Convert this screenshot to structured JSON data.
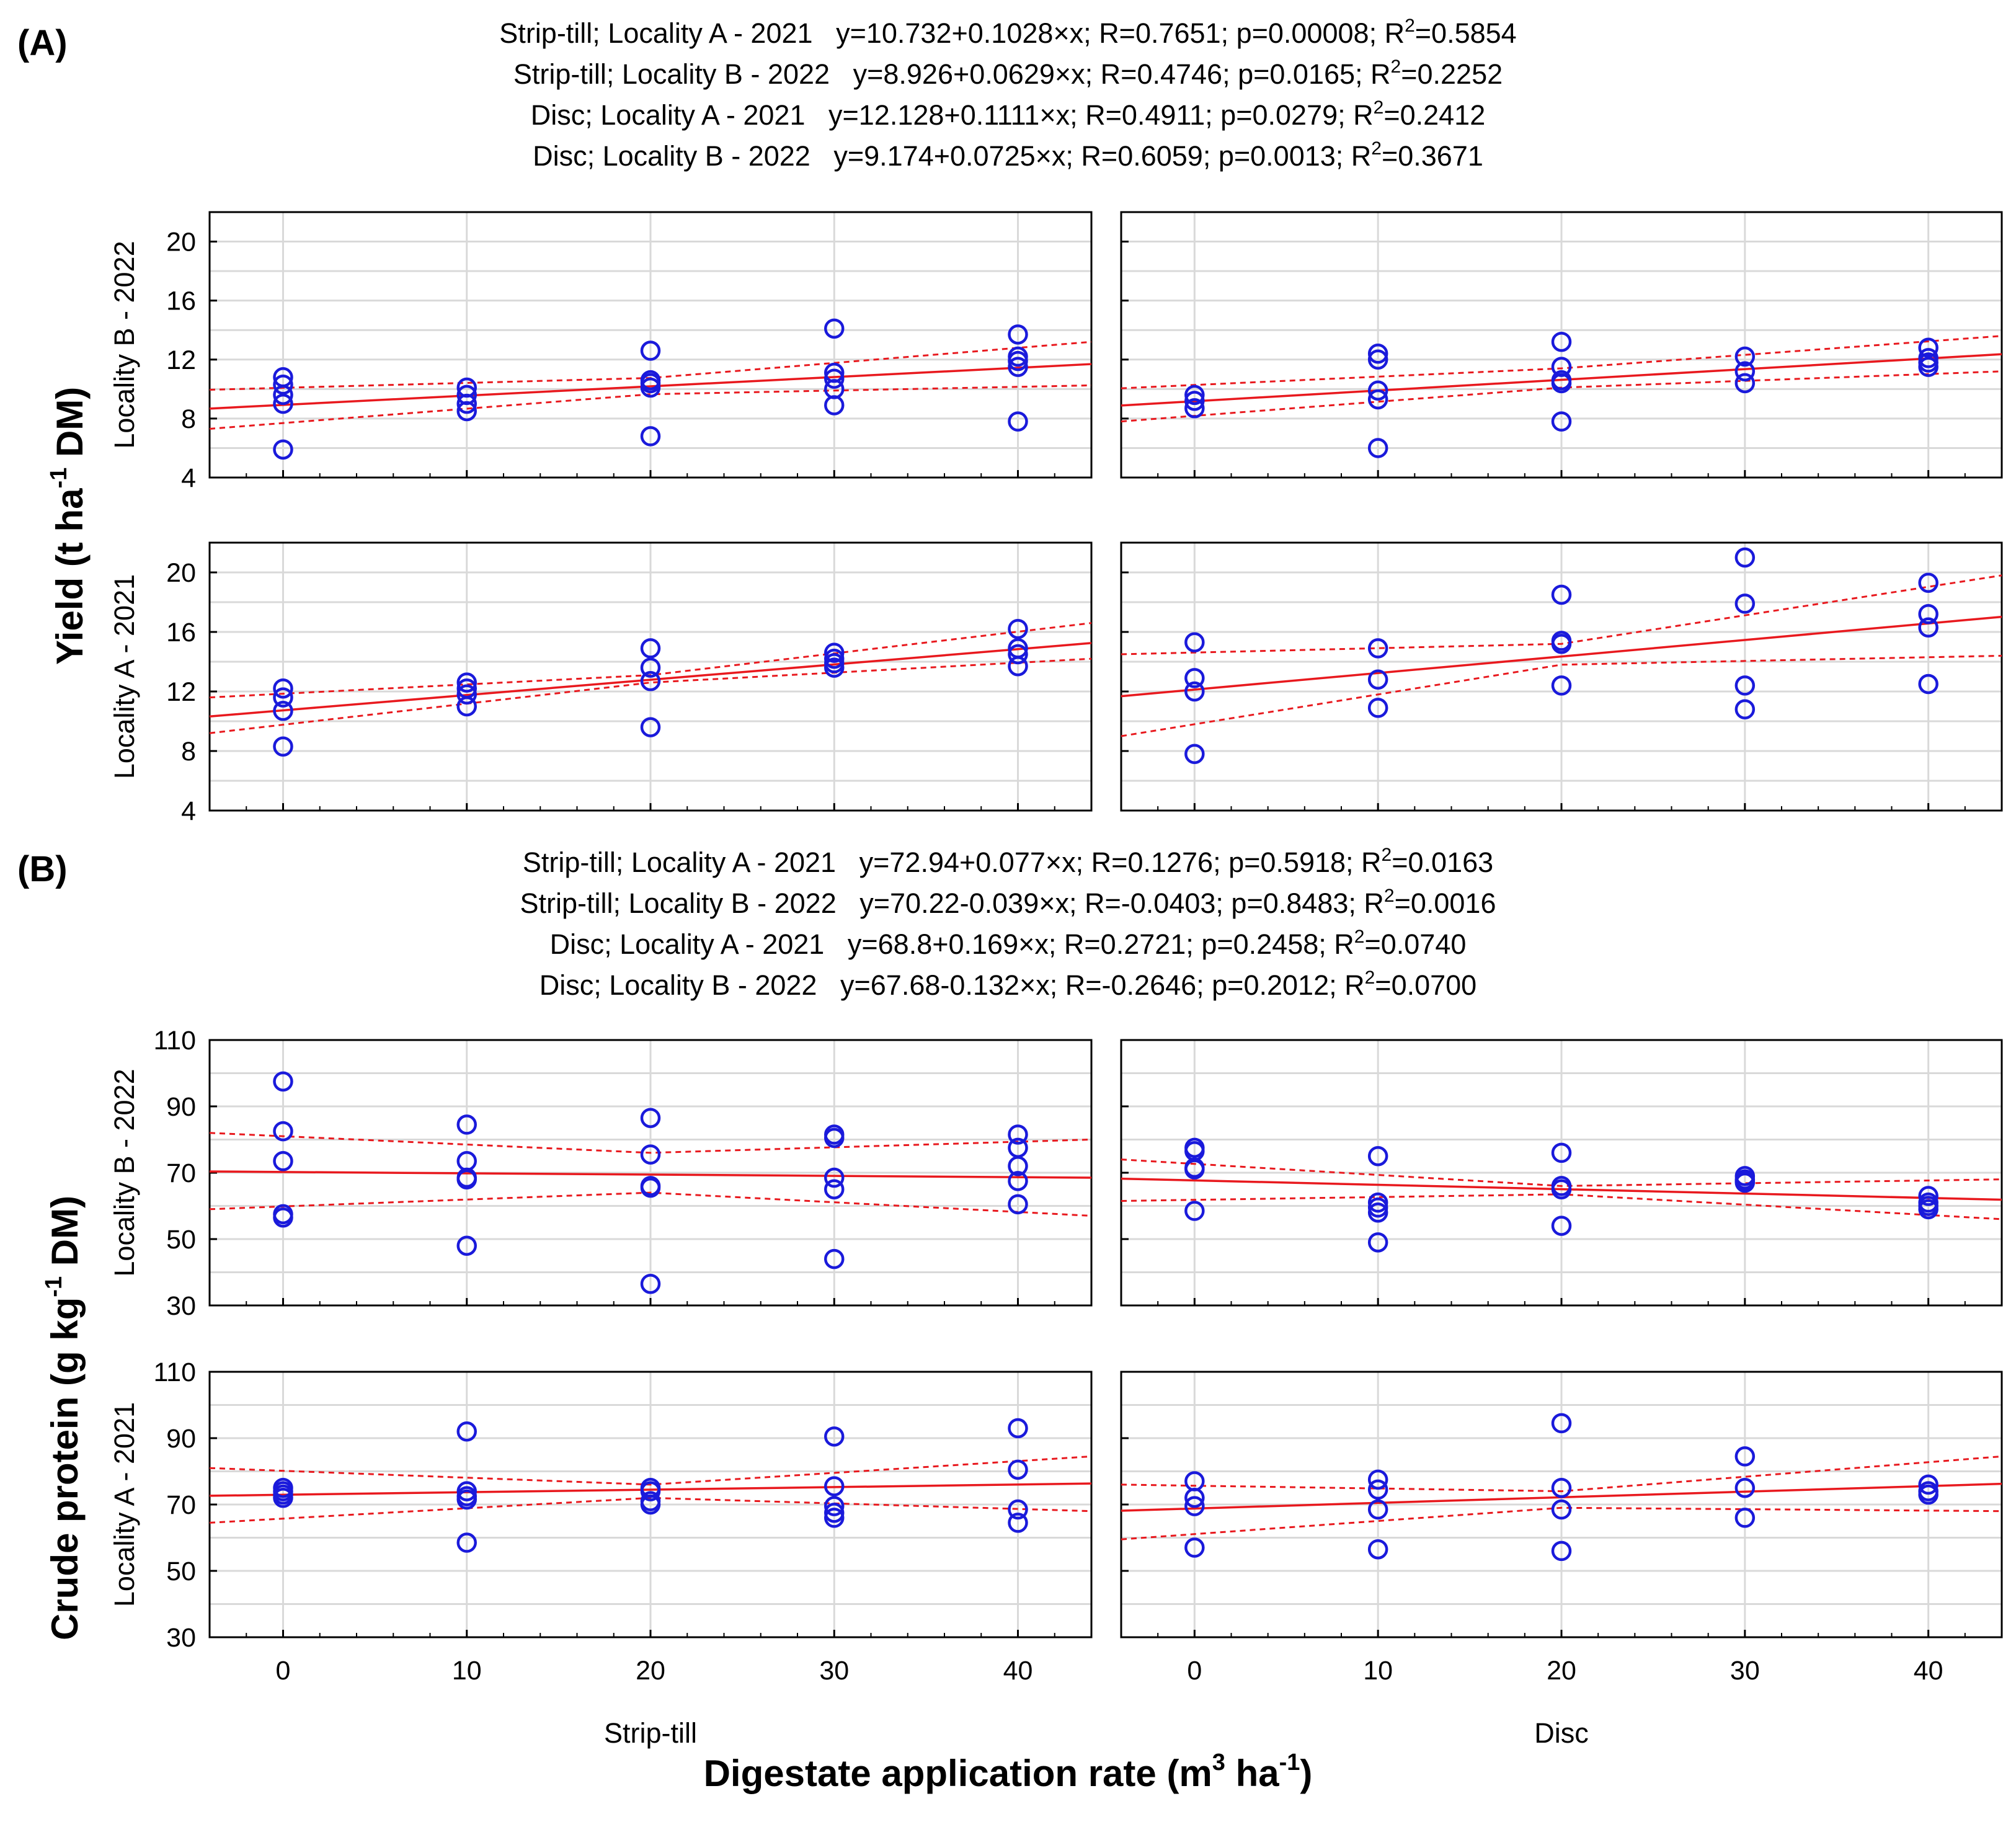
{
  "figure": {
    "y_title_yield": "Yield (t ha",
    "y_title_yield_sup": "-1",
    "y_title_yield_tail": " DM)",
    "y_title_protein": "Crude protein (g kg",
    "y_title_protein_sup": "-1",
    "y_title_protein_tail": " DM)",
    "x_title": "Digestate application rate (m",
    "x_title_sup": "3",
    "x_title_mid": " ha",
    "x_title_sup2": "-1",
    "x_title_tail": ")",
    "column_labels": [
      "Strip-till",
      "Disc"
    ],
    "row_labels": [
      "Locality B - 2022",
      "Locality A - 2021"
    ]
  },
  "colors": {
    "points": "#1a1adb",
    "fit": "#e8191e",
    "grid": "#d9d9d9",
    "frame": "#000000"
  },
  "chart_data": [
    {
      "type": "scatter",
      "section": "(A)",
      "variable": "Yield",
      "ylim": [
        4,
        22
      ],
      "yticks": [
        4,
        8,
        12,
        16,
        20
      ],
      "xlim": [
        -4,
        44
      ],
      "xticks": [
        0,
        10,
        20,
        30,
        40
      ],
      "equations": [
        {
          "label": "Strip-till; Locality A - 2021",
          "eq": "y=10.732+0.1028×x; R=0.7651; p=0.00008; R",
          "r2": "=0.5854"
        },
        {
          "label": "Strip-till; Locality B - 2022",
          "eq": "y=8.926+0.0629×x; R=0.4746; p=0.0165; R",
          "r2": "=0.2252"
        },
        {
          "label": "Disc; Locality A - 2021",
          "eq": "y=12.128+0.1111×x; R=0.4911; p=0.0279; R",
          "r2": "=0.2412"
        },
        {
          "label": "Disc; Locality B - 2022",
          "eq": "y=9.174+0.0725×x; R=0.6059; p=0.0013; R",
          "r2": "=0.3671"
        }
      ],
      "panels": [
        {
          "column": "Strip-till",
          "row": "Locality B - 2022",
          "intercept": 8.926,
          "slope": 0.0629,
          "ci_upper": [
            [
              -4,
              9.95
            ],
            [
              20,
              10.75
            ],
            [
              44,
              13.2
            ]
          ],
          "ci_lower": [
            [
              -4,
              7.3
            ],
            [
              20,
              9.65
            ],
            [
              44,
              10.25
            ]
          ],
          "points": [
            [
              0,
              10.8
            ],
            [
              0,
              10.3
            ],
            [
              0,
              9.6
            ],
            [
              0,
              9.0
            ],
            [
              0,
              5.9
            ],
            [
              10,
              10.1
            ],
            [
              10,
              9.6
            ],
            [
              10,
              9.0
            ],
            [
              10,
              8.5
            ],
            [
              20,
              12.6
            ],
            [
              20,
              10.6
            ],
            [
              20,
              10.4
            ],
            [
              20,
              10.1
            ],
            [
              20,
              6.8
            ],
            [
              30,
              14.1
            ],
            [
              30,
              11.1
            ],
            [
              30,
              10.7
            ],
            [
              30,
              10.0
            ],
            [
              30,
              8.9
            ],
            [
              40,
              13.7
            ],
            [
              40,
              12.2
            ],
            [
              40,
              11.9
            ],
            [
              40,
              11.5
            ],
            [
              40,
              7.8
            ]
          ]
        },
        {
          "column": "Disc",
          "row": "Locality B - 2022",
          "intercept": 9.174,
          "slope": 0.0725,
          "ci_upper": [
            [
              -4,
              10.05
            ],
            [
              20,
              11.4
            ],
            [
              44,
              13.6
            ]
          ],
          "ci_lower": [
            [
              -4,
              7.8
            ],
            [
              20,
              10.1
            ],
            [
              44,
              11.2
            ]
          ],
          "points": [
            [
              0,
              9.6
            ],
            [
              0,
              9.2
            ],
            [
              0,
              8.7
            ],
            [
              10,
              12.4
            ],
            [
              10,
              12.0
            ],
            [
              10,
              9.9
            ],
            [
              10,
              9.3
            ],
            [
              10,
              6.0
            ],
            [
              20,
              13.2
            ],
            [
              20,
              11.5
            ],
            [
              20,
              10.6
            ],
            [
              20,
              10.4
            ],
            [
              20,
              7.8
            ],
            [
              30,
              12.2
            ],
            [
              30,
              11.2
            ],
            [
              30,
              10.4
            ],
            [
              40,
              12.8
            ],
            [
              40,
              12.1
            ],
            [
              40,
              11.8
            ],
            [
              40,
              11.5
            ]
          ]
        },
        {
          "column": "Strip-till",
          "row": "Locality A - 2021",
          "intercept": 10.732,
          "slope": 0.1028,
          "ci_upper": [
            [
              -4,
              11.6
            ],
            [
              20,
              13.1
            ],
            [
              44,
              16.6
            ]
          ],
          "ci_lower": [
            [
              -4,
              9.2
            ],
            [
              20,
              12.6
            ],
            [
              44,
              14.2
            ]
          ],
          "points": [
            [
              0,
              12.2
            ],
            [
              0,
              11.6
            ],
            [
              0,
              10.7
            ],
            [
              0,
              8.3
            ],
            [
              10,
              12.6
            ],
            [
              10,
              12.2
            ],
            [
              10,
              11.8
            ],
            [
              10,
              11.0
            ],
            [
              20,
              14.9
            ],
            [
              20,
              13.6
            ],
            [
              20,
              12.7
            ],
            [
              20,
              9.6
            ],
            [
              30,
              14.6
            ],
            [
              30,
              14.2
            ],
            [
              30,
              13.9
            ],
            [
              30,
              13.6
            ],
            [
              40,
              16.2
            ],
            [
              40,
              14.9
            ],
            [
              40,
              14.5
            ],
            [
              40,
              13.7
            ]
          ]
        },
        {
          "column": "Disc",
          "row": "Locality A - 2021",
          "intercept": 12.128,
          "slope": 0.1111,
          "ci_upper": [
            [
              -4,
              14.5
            ],
            [
              20,
              15.2
            ],
            [
              44,
              19.8
            ]
          ],
          "ci_lower": [
            [
              -4,
              9.0
            ],
            [
              20,
              13.8
            ],
            [
              44,
              14.4
            ]
          ],
          "points": [
            [
              0,
              15.3
            ],
            [
              0,
              12.9
            ],
            [
              0,
              12.0
            ],
            [
              0,
              7.8
            ],
            [
              10,
              14.9
            ],
            [
              10,
              12.8
            ],
            [
              10,
              10.9
            ],
            [
              20,
              18.5
            ],
            [
              20,
              15.4
            ],
            [
              20,
              15.2
            ],
            [
              20,
              12.4
            ],
            [
              30,
              21.0
            ],
            [
              30,
              17.9
            ],
            [
              30,
              12.4
            ],
            [
              30,
              10.8
            ],
            [
              40,
              19.3
            ],
            [
              40,
              17.2
            ],
            [
              40,
              16.3
            ],
            [
              40,
              12.5
            ]
          ]
        }
      ]
    },
    {
      "type": "scatter",
      "section": "(B)",
      "variable": "Crude protein",
      "ylim": [
        30,
        110
      ],
      "yticks": [
        30,
        50,
        70,
        90,
        110
      ],
      "xlim": [
        -4,
        44
      ],
      "xticks": [
        0,
        10,
        20,
        30,
        40
      ],
      "equations": [
        {
          "label": "Strip-till; Locality A - 2021",
          "eq": "y=72.94+0.077×x; R=0.1276; p=0.5918; R",
          "r2": "=0.0163"
        },
        {
          "label": "Strip-till; Locality B - 2022",
          "eq": "y=70.22-0.039×x; R=-0.0403; p=0.8483; R",
          "r2": "=0.0016"
        },
        {
          "label": "Disc; Locality A - 2021",
          "eq": "y=68.8+0.169×x; R=0.2721; p=0.2458; R",
          "r2": "=0.0740"
        },
        {
          "label": "Disc; Locality B - 2022",
          "eq": "y=67.68-0.132×x; R=-0.2646; p=0.2012; R",
          "r2": "=0.0700"
        }
      ],
      "panels": [
        {
          "column": "Strip-till",
          "row": "Locality B - 2022",
          "intercept": 70.22,
          "slope": -0.039,
          "ci_upper": [
            [
              -4,
              82
            ],
            [
              20,
              76
            ],
            [
              44,
              80
            ]
          ],
          "ci_lower": [
            [
              -4,
              59
            ],
            [
              20,
              64
            ],
            [
              44,
              57
            ]
          ],
          "points": [
            [
              0,
              97.5
            ],
            [
              0,
              82.5
            ],
            [
              0,
              73.5
            ],
            [
              0,
              57.5
            ],
            [
              0,
              56.5
            ],
            [
              10,
              84.5
            ],
            [
              10,
              73.5
            ],
            [
              10,
              68.5
            ],
            [
              10,
              68
            ],
            [
              10,
              48
            ],
            [
              20,
              86.5
            ],
            [
              20,
              75.5
            ],
            [
              20,
              66
            ],
            [
              20,
              65.5
            ],
            [
              20,
              36.5
            ],
            [
              30,
              81.5
            ],
            [
              30,
              80.5
            ],
            [
              30,
              68.5
            ],
            [
              30,
              65
            ],
            [
              30,
              44
            ],
            [
              40,
              81.5
            ],
            [
              40,
              77.5
            ],
            [
              40,
              72
            ],
            [
              40,
              67.5
            ],
            [
              40,
              60.5
            ]
          ]
        },
        {
          "column": "Disc",
          "row": "Locality B - 2022",
          "intercept": 67.68,
          "slope": -0.132,
          "ci_upper": [
            [
              -4,
              74
            ],
            [
              20,
              66
            ],
            [
              44,
              68
            ]
          ],
          "ci_lower": [
            [
              -4,
              61.5
            ],
            [
              20,
              63.5
            ],
            [
              44,
              56
            ]
          ],
          "points": [
            [
              0,
              77.5
            ],
            [
              0,
              76.5
            ],
            [
              0,
              71.5
            ],
            [
              0,
              71
            ],
            [
              0,
              58.5
            ],
            [
              10,
              75
            ],
            [
              10,
              61
            ],
            [
              10,
              59.5
            ],
            [
              10,
              58
            ],
            [
              10,
              49
            ],
            [
              20,
              76
            ],
            [
              20,
              66
            ],
            [
              20,
              65
            ],
            [
              20,
              54
            ],
            [
              30,
              69
            ],
            [
              30,
              68
            ],
            [
              30,
              67.5
            ],
            [
              30,
              67
            ],
            [
              40,
              63
            ],
            [
              40,
              61
            ],
            [
              40,
              60
            ],
            [
              40,
              59
            ]
          ]
        },
        {
          "column": "Strip-till",
          "row": "Locality A - 2021",
          "intercept": 72.94,
          "slope": 0.077,
          "ci_upper": [
            [
              -4,
              81
            ],
            [
              20,
              76
            ],
            [
              44,
              84.5
            ]
          ],
          "ci_lower": [
            [
              -4,
              64.5
            ],
            [
              20,
              72
            ],
            [
              44,
              68
            ]
          ],
          "points": [
            [
              0,
              75
            ],
            [
              0,
              74
            ],
            [
              0,
              73
            ],
            [
              0,
              72
            ],
            [
              10,
              92
            ],
            [
              10,
              74
            ],
            [
              10,
              72.5
            ],
            [
              10,
              71.5
            ],
            [
              10,
              58.5
            ],
            [
              20,
              75
            ],
            [
              20,
              74
            ],
            [
              20,
              71
            ],
            [
              20,
              70
            ],
            [
              30,
              90.5
            ],
            [
              30,
              75.5
            ],
            [
              30,
              69.5
            ],
            [
              30,
              67.5
            ],
            [
              30,
              66
            ],
            [
              40,
              93
            ],
            [
              40,
              80.5
            ],
            [
              40,
              68.5
            ],
            [
              40,
              64.5
            ]
          ]
        },
        {
          "column": "Disc",
          "row": "Locality A - 2021",
          "intercept": 68.8,
          "slope": 0.169,
          "ci_upper": [
            [
              -4,
              76
            ],
            [
              20,
              74
            ],
            [
              44,
              84.5
            ]
          ],
          "ci_lower": [
            [
              -4,
              59.5
            ],
            [
              20,
              69
            ],
            [
              44,
              68
            ]
          ],
          "points": [
            [
              0,
              77
            ],
            [
              0,
              72
            ],
            [
              0,
              69.5
            ],
            [
              0,
              57
            ],
            [
              10,
              77.5
            ],
            [
              10,
              74.5
            ],
            [
              10,
              68.5
            ],
            [
              10,
              56.5
            ],
            [
              20,
              94.5
            ],
            [
              20,
              75
            ],
            [
              20,
              68.5
            ],
            [
              20,
              56
            ],
            [
              30,
              84.5
            ],
            [
              30,
              75
            ],
            [
              30,
              66
            ],
            [
              40,
              76
            ],
            [
              40,
              74
            ],
            [
              40,
              73
            ]
          ]
        }
      ]
    }
  ]
}
